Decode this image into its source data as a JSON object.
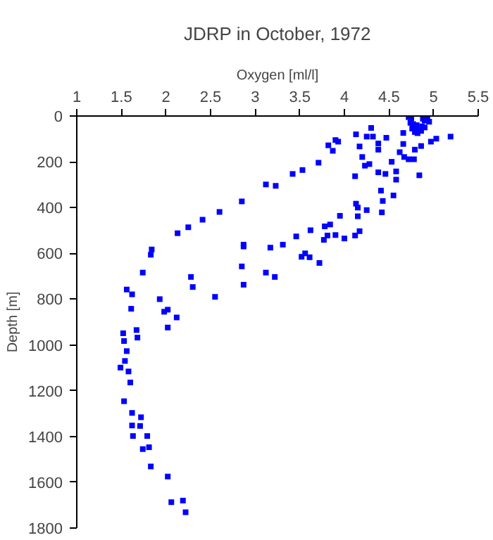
{
  "chart_data": {
    "type": "scatter",
    "title": "JDRP in October, 1972",
    "xlabel": "Oxygen [ml/l]",
    "ylabel": "Depth [m]",
    "xlim": [
      1,
      5.5
    ],
    "ylim": [
      1800,
      0
    ],
    "xticks": [
      1,
      1.5,
      2,
      2.5,
      3,
      3.5,
      4,
      4.5,
      5,
      5.5
    ],
    "yticks": [
      0,
      200,
      400,
      600,
      800,
      1000,
      1200,
      1400,
      1600,
      1800
    ],
    "grid": false,
    "marker": "square",
    "series": [
      {
        "color": "#0000ff",
        "x": [
          4.72,
          4.75,
          4.88,
          4.9,
          4.93,
          4.95,
          4.74,
          4.77,
          4.81,
          4.87,
          4.9,
          4.76,
          4.8,
          4.86,
          4.79,
          4.82,
          4.3,
          5.19,
          5.03,
          4.13,
          3.9,
          3.82,
          3.93,
          3.87,
          4.17,
          4.25,
          4.32,
          4.38,
          4.47,
          4.38,
          4.2,
          4.23,
          4.28,
          4.12,
          3.71,
          3.53,
          3.42,
          3.12,
          3.23,
          2.85,
          2.6,
          2.41,
          2.25,
          2.13,
          2.87,
          3.31,
          3.46,
          3.62,
          3.78,
          3.84,
          3.95,
          3.81,
          3.9,
          4.0,
          4.12,
          4.17,
          4.15,
          4.13,
          4.15,
          4.25,
          4.42,
          4.43,
          4.41,
          4.55,
          4.38,
          4.46,
          4.58,
          4.58,
          4.53,
          4.62,
          4.67,
          4.72,
          4.78,
          4.84,
          4.79,
          4.86,
          4.97,
          4.66,
          4.66,
          1.83,
          1.84,
          1.74,
          1.56,
          1.62,
          1.61,
          1.93,
          1.98,
          2.02,
          2.12,
          2.02,
          2.28,
          2.3,
          2.55,
          2.85,
          2.87,
          2.87,
          3.17,
          3.12,
          3.22,
          3.52,
          3.56,
          3.61,
          3.72,
          3.77,
          1.52,
          1.53,
          1.67,
          1.68,
          1.56,
          1.54,
          1.49,
          1.58,
          1.6,
          1.53,
          1.62,
          1.72,
          1.62,
          1.71,
          1.63,
          1.79,
          1.74,
          1.81,
          1.83,
          2.02,
          2.06,
          2.19,
          2.22
        ],
        "values": [
          5,
          10,
          12,
          20,
          4,
          25,
          30,
          35,
          40,
          45,
          50,
          55,
          60,
          65,
          70,
          75,
          52,
          90,
          99,
          80,
          105,
          128,
          112,
          152,
          133,
          90,
          90,
          147,
          95,
          120,
          179,
          217,
          210,
          263,
          204,
          236,
          253,
          299,
          305,
          373,
          419,
          453,
          486,
          512,
          562,
          562,
          526,
          499,
          482,
          474,
          436,
          522,
          520,
          535,
          522,
          503,
          438,
          383,
          400,
          411,
          421,
          371,
          326,
          347,
          246,
          253,
          278,
          242,
          200,
          158,
          179,
          189,
          189,
          259,
          147,
          131,
          112,
          122,
          74,
          606,
          583,
          684,
          758,
          779,
          842,
          800,
          855,
          846,
          880,
          924,
          703,
          747,
          790,
          657,
          570,
          737,
          575,
          684,
          703,
          615,
          600,
          617,
          642,
          541,
          949,
          983,
          935,
          968,
          1027,
          1070,
          1099,
          1116,
          1164,
          1246,
          1297,
          1316,
          1352,
          1354,
          1398,
          1398,
          1455,
          1447,
          1531,
          1575,
          1687,
          1680,
          1731
        ]
      }
    ]
  }
}
